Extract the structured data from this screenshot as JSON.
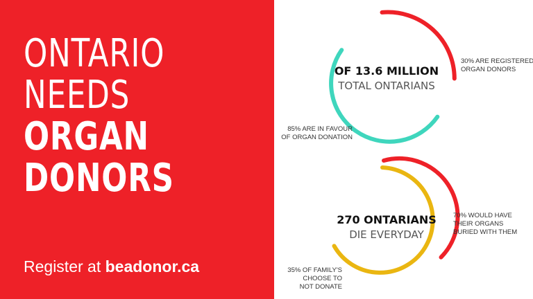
{
  "headline": {
    "line1": "ONTARIO",
    "line2": "NEEDS",
    "line3": "ORGAN",
    "line4": "DONORS"
  },
  "register": {
    "prefix": "Register at ",
    "link": "beadonor.ca"
  },
  "ring1": {
    "title": "OF 13.6 MILLION",
    "subtitle": "TOTAL ONTARIANS",
    "label_right_line1": "30% ARE REGISTERED",
    "label_right_line2": "ORGAN DONORS",
    "label_left_line1": "85% ARE IN FAVOUR",
    "label_left_line2": "OF ORGAN DONATION",
    "registered_percent": 30,
    "in_favour_percent": 85
  },
  "ring2": {
    "title": "270 ONTARIANS",
    "subtitle": "DIE EVERYDAY",
    "label_right_line1": "70% WOULD HAVE",
    "label_right_line2": "THEIR ORGANS",
    "label_right_line3": "BURIED WITH THEM",
    "label_left_line1": "35% OF FAMILY'S",
    "label_left_line2": "CHOOSE TO",
    "label_left_line3": "NOT DONATE",
    "buried_percent": 70,
    "not_donate_percent": 35
  },
  "colors": {
    "brand_red": "#ee2128",
    "teal": "#3fd6bd",
    "yellow": "#eab611",
    "white": "#ffffff"
  }
}
